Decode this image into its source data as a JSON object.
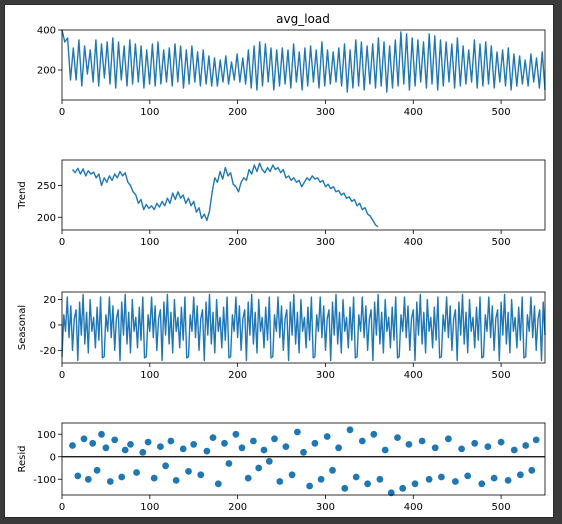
{
  "colors": {
    "series": "#1f77b4",
    "axis": "#000000",
    "background": "#ffffff"
  },
  "chart_data": [
    {
      "type": "line",
      "title": "avg_load",
      "ylabel": "",
      "xlim": [
        0,
        550
      ],
      "ylim": [
        50,
        400
      ],
      "xticks": [
        0,
        100,
        200,
        300,
        400,
        500
      ],
      "yticks": [
        200,
        400
      ],
      "series": [
        {
          "values": [
            400,
            340,
            360,
            150,
            310,
            150,
            350,
            120,
            320,
            180,
            300,
            140,
            350,
            120,
            330,
            160,
            340,
            130,
            360,
            110,
            340,
            150,
            320,
            120,
            350,
            130,
            330,
            140,
            320,
            110,
            300,
            130,
            330,
            120,
            340,
            130,
            300,
            140,
            310,
            120,
            330,
            140,
            320,
            110,
            300,
            130,
            320,
            140,
            290,
            120,
            300,
            130,
            270,
            120,
            260,
            120,
            250,
            140,
            270,
            130,
            240,
            150,
            280,
            140,
            260,
            130,
            300,
            110,
            320,
            100,
            340,
            120,
            330,
            140,
            310,
            100,
            300,
            120,
            310,
            130,
            300,
            110,
            330,
            140,
            290,
            100,
            310,
            120,
            320,
            140,
            300,
            110,
            340,
            120,
            300,
            130,
            290,
            140,
            310,
            120,
            330,
            90,
            300,
            110,
            350,
            120,
            340,
            100,
            320,
            130,
            330,
            110,
            360,
            120,
            340,
            90,
            320,
            110,
            350,
            120,
            390,
            130,
            380,
            100,
            360,
            120,
            350,
            140,
            340,
            110,
            380,
            130,
            370,
            100,
            350,
            120,
            340,
            140,
            330,
            110,
            360,
            120,
            320,
            130,
            300,
            140,
            350,
            110,
            330,
            120,
            340,
            130,
            320,
            110,
            290,
            140,
            300,
            120,
            310,
            100,
            280,
            120,
            270,
            130,
            250,
            120,
            280,
            140,
            260,
            110,
            290,
            100
          ]
        }
      ]
    },
    {
      "type": "line",
      "title": "",
      "ylabel": "Trend",
      "xlim": [
        0,
        550
      ],
      "ylim": [
        180,
        290
      ],
      "xticks": [
        0,
        100,
        200,
        300,
        400,
        500
      ],
      "yticks": [
        200,
        250
      ],
      "x_start": 12,
      "x_step": 3,
      "series": [
        {
          "values": [
            275,
            270,
            277,
            268,
            276,
            265,
            273,
            268,
            271,
            262,
            268,
            250,
            262,
            255,
            265,
            258,
            268,
            262,
            272,
            265,
            270,
            255,
            250,
            240,
            235,
            222,
            228,
            212,
            220,
            214,
            218,
            212,
            222,
            216,
            225,
            218,
            230,
            222,
            238,
            228,
            240,
            230,
            235,
            222,
            230,
            218,
            225,
            208,
            215,
            198,
            205,
            195,
            210,
            240,
            262,
            255,
            272,
            260,
            278,
            265,
            270,
            252,
            248,
            240,
            255,
            262,
            258,
            275,
            268,
            282,
            272,
            285,
            275,
            270,
            278,
            272,
            282,
            275,
            278,
            270,
            275,
            262,
            265,
            258,
            262,
            255,
            258,
            248,
            255,
            262,
            258,
            265,
            260,
            262,
            255,
            258,
            248,
            252,
            245,
            248,
            240,
            242,
            235,
            238,
            230,
            232,
            225,
            228,
            218,
            222,
            212,
            215,
            205,
            202,
            195,
            188,
            185
          ]
        }
      ]
    },
    {
      "type": "line",
      "title": "",
      "ylabel": "Seasonal",
      "xlim": [
        0,
        550
      ],
      "ylim": [
        -30,
        26
      ],
      "xticks": [
        0,
        100,
        200,
        300,
        400,
        500
      ],
      "yticks": [
        -20,
        0,
        20
      ],
      "period": 24,
      "series": [
        {
          "values": [
            -25,
            8,
            -5,
            22,
            -10,
            15,
            -20,
            5,
            12,
            -28,
            18,
            -8,
            24,
            -15,
            10,
            -22,
            20,
            -5,
            6,
            -18,
            14,
            -12,
            22,
            -26
          ]
        }
      ]
    },
    {
      "type": "scatter",
      "title": "",
      "ylabel": "Resid",
      "xlim": [
        0,
        550
      ],
      "ylim": [
        -170,
        150
      ],
      "xticks": [
        0,
        100,
        200,
        300,
        400,
        500
      ],
      "yticks": [
        -100,
        0,
        100
      ],
      "zero_line": true,
      "series": [
        {
          "points": [
            [
              12,
              50
            ],
            [
              18,
              -85
            ],
            [
              25,
              80
            ],
            [
              30,
              -100
            ],
            [
              35,
              60
            ],
            [
              40,
              -60
            ],
            [
              45,
              100
            ],
            [
              50,
              40
            ],
            [
              55,
              -110
            ],
            [
              60,
              75
            ],
            [
              68,
              -90
            ],
            [
              72,
              30
            ],
            [
              78,
              55
            ],
            [
              85,
              -70
            ],
            [
              92,
              20
            ],
            [
              98,
              65
            ],
            [
              105,
              -95
            ],
            [
              112,
              45
            ],
            [
              118,
              -40
            ],
            [
              124,
              70
            ],
            [
              130,
              -105
            ],
            [
              138,
              35
            ],
            [
              144,
              -65
            ],
            [
              150,
              55
            ],
            [
              158,
              -80
            ],
            [
              165,
              25
            ],
            [
              172,
              85
            ],
            [
              178,
              -120
            ],
            [
              185,
              60
            ],
            [
              190,
              -30
            ],
            [
              198,
              100
            ],
            [
              205,
              40
            ],
            [
              212,
              -95
            ],
            [
              218,
              70
            ],
            [
              224,
              -50
            ],
            [
              230,
              30
            ],
            [
              236,
              -20
            ],
            [
              242,
              80
            ],
            [
              248,
              -110
            ],
            [
              255,
              45
            ],
            [
              262,
              -80
            ],
            [
              268,
              110
            ],
            [
              275,
              20
            ],
            [
              282,
              -130
            ],
            [
              288,
              60
            ],
            [
              295,
              -100
            ],
            [
              302,
              90
            ],
            [
              308,
              -60
            ],
            [
              315,
              40
            ],
            [
              322,
              -140
            ],
            [
              328,
              120
            ],
            [
              335,
              -90
            ],
            [
              342,
              70
            ],
            [
              348,
              -120
            ],
            [
              355,
              100
            ],
            [
              362,
              -100
            ],
            [
              368,
              30
            ],
            [
              375,
              -160
            ],
            [
              382,
              85
            ],
            [
              388,
              -140
            ],
            [
              395,
              55
            ],
            [
              402,
              -120
            ],
            [
              410,
              70
            ],
            [
              418,
              -100
            ],
            [
              425,
              40
            ],
            [
              432,
              -90
            ],
            [
              440,
              80
            ],
            [
              448,
              -110
            ],
            [
              455,
              35
            ],
            [
              462,
              -85
            ],
            [
              470,
              60
            ],
            [
              478,
              -120
            ],
            [
              485,
              45
            ],
            [
              492,
              -95
            ],
            [
              500,
              65
            ],
            [
              508,
              -105
            ],
            [
              515,
              30
            ],
            [
              522,
              -80
            ],
            [
              528,
              50
            ],
            [
              535,
              -60
            ],
            [
              540,
              75
            ]
          ]
        }
      ]
    }
  ]
}
